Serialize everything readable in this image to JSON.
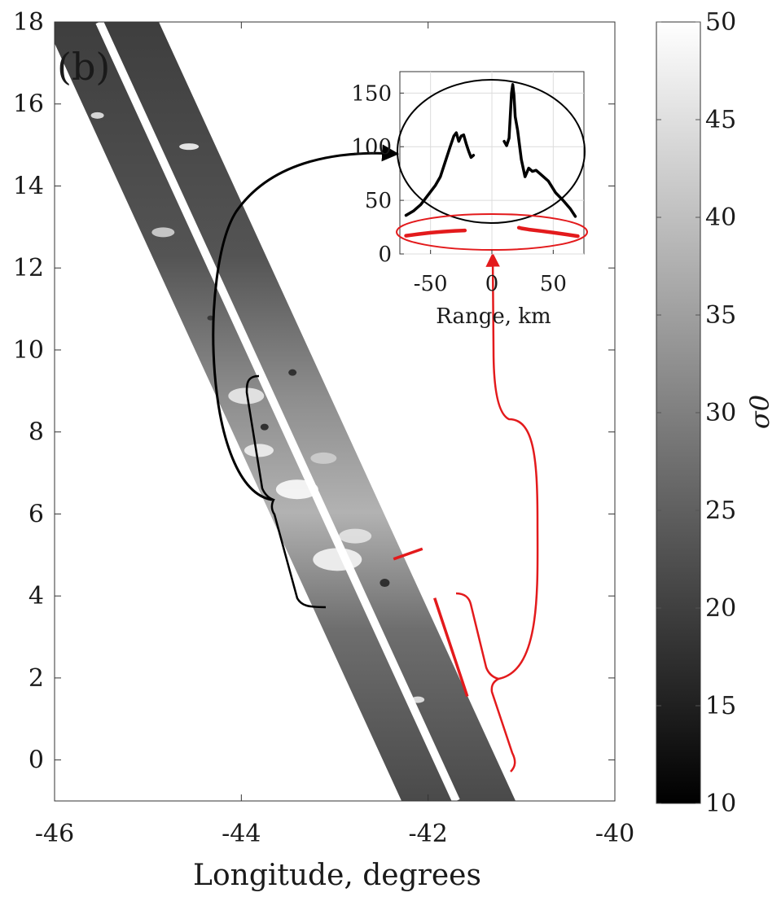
{
  "chart_data": [
    {
      "type": "image",
      "panel_label": "(b)",
      "xlabel": "Longitude, degrees",
      "ylabel": "",
      "xlim": [
        -46,
        -40
      ],
      "ylim": [
        -1,
        18
      ],
      "xticks": [
        -46,
        -44,
        -42,
        -40
      ],
      "yticks": [
        0,
        2,
        4,
        6,
        8,
        10,
        12,
        14,
        16,
        18
      ],
      "swath_centerline": [
        [
          -45.52,
          18
        ],
        [
          -41.7,
          -1
        ]
      ],
      "red_segments": [
        [
          [
            -42.37,
            4.9
          ],
          [
            -42.06,
            5.15
          ]
        ],
        [
          [
            -41.93,
            3.95
          ],
          [
            -41.58,
            1.55
          ]
        ]
      ]
    },
    {
      "type": "line",
      "xlabel": "Range, km",
      "ylabel": "",
      "xlim": [
        -75,
        75
      ],
      "ylim": [
        0,
        170
      ],
      "xticks": [
        -50,
        0,
        50
      ],
      "yticks": [
        0,
        50,
        100,
        150
      ],
      "grid": true,
      "series": [
        {
          "color": "#000000",
          "x": [
            -70,
            -64,
            -58,
            -52,
            -46,
            -42,
            -38,
            -34,
            -31,
            -29,
            -27,
            -25,
            -23,
            -21,
            -19,
            -17,
            -15,
            10,
            12,
            14,
            16,
            17,
            18,
            19,
            21,
            24,
            27,
            30,
            33,
            36,
            40,
            46,
            52,
            58,
            64,
            68
          ],
          "y": [
            36,
            40,
            46,
            55,
            64,
            72,
            86,
            100,
            110,
            113,
            105,
            110,
            111,
            103,
            96,
            90,
            92,
            105,
            101,
            108,
            150,
            158,
            148,
            128,
            115,
            88,
            72,
            80,
            77,
            78,
            74,
            68,
            57,
            50,
            42,
            35
          ]
        },
        {
          "color": "#e31a1c",
          "x": [
            -70,
            -60,
            -50,
            -40,
            -30,
            -24,
            -22,
            22,
            24,
            30,
            40,
            50,
            60,
            70
          ],
          "y": [
            17,
            18.5,
            19.8,
            20.8,
            21.5,
            21.8,
            21.9,
            24.5,
            23.9,
            22.8,
            21.4,
            19.9,
            18.3,
            16.6
          ]
        }
      ]
    },
    {
      "type": "colorbar",
      "label": "σ0",
      "range": [
        10,
        50
      ],
      "ticks": [
        10,
        15,
        20,
        25,
        30,
        35,
        40,
        45,
        50
      ]
    }
  ]
}
